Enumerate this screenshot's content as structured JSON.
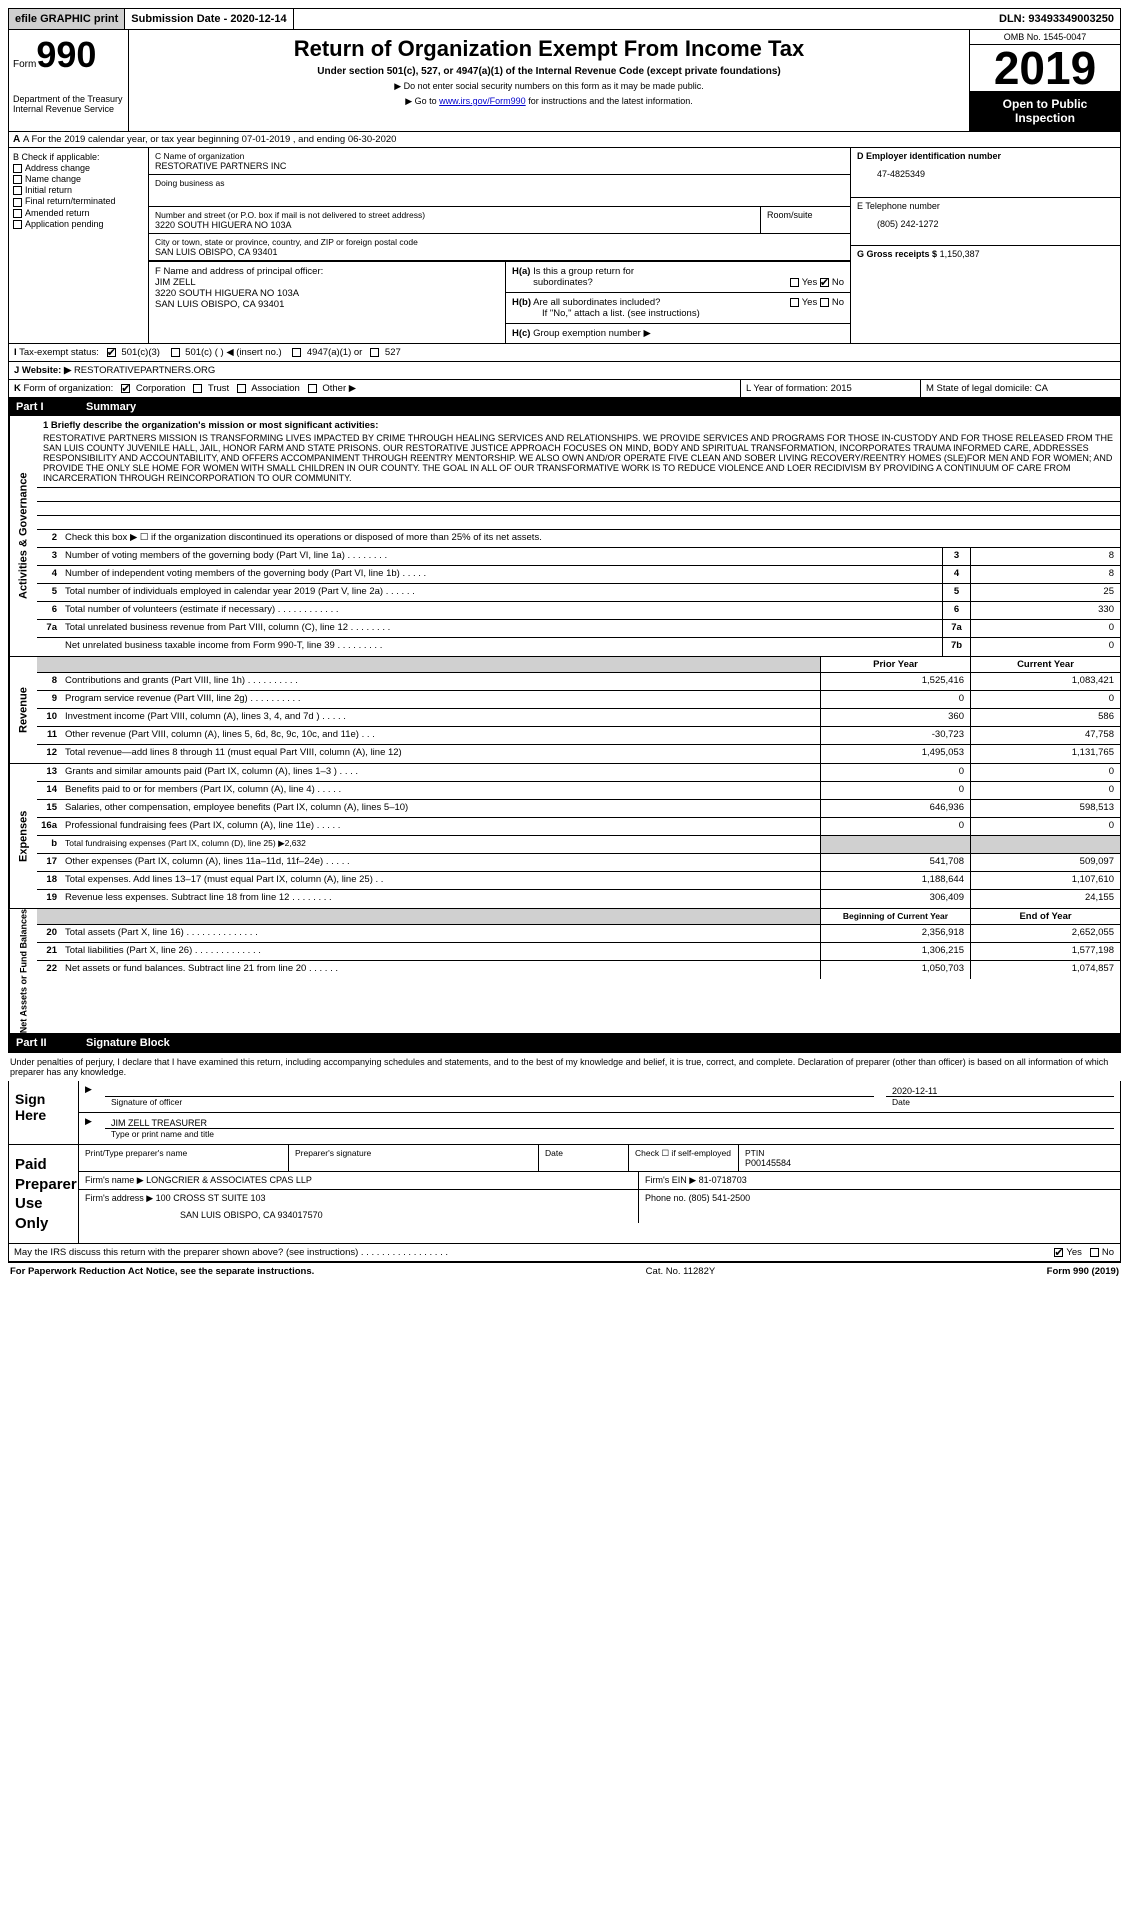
{
  "top": {
    "efile": "efile GRAPHIC print",
    "submission_label": "Submission Date - 2020-12-14",
    "dln": "DLN: 93493349003250"
  },
  "header": {
    "form_word": "Form",
    "form_num": "990",
    "dept1": "Department of the Treasury",
    "dept2": "Internal Revenue Service",
    "title": "Return of Organization Exempt From Income Tax",
    "sub1": "Under section 501(c), 527, or 4947(a)(1) of the Internal Revenue Code (except private foundations)",
    "sub2": "▶ Do not enter social security numbers on this form as it may be made public.",
    "sub3_pre": "▶ Go to ",
    "sub3_link": "www.irs.gov/Form990",
    "sub3_post": " for instructions and the latest information.",
    "omb": "OMB No. 1545-0047",
    "year": "2019",
    "open1": "Open to Public",
    "open2": "Inspection"
  },
  "rowA": "A For the 2019 calendar year, or tax year beginning 07-01-2019    , and ending 06-30-2020",
  "B": {
    "label": "B Check if applicable:",
    "opts": [
      "Address change",
      "Name change",
      "Initial return",
      "Final return/terminated",
      "Amended return",
      "Application pending"
    ]
  },
  "C": {
    "name_lbl": "C Name of organization",
    "name": "RESTORATIVE PARTNERS INC",
    "dba_lbl": "Doing business as",
    "dba": "",
    "addr_lbl": "Number and street (or P.O. box if mail is not delivered to street address)",
    "addr": "3220 SOUTH HIGUERA NO 103A",
    "room_lbl": "Room/suite",
    "city_lbl": "City or town, state or province, country, and ZIP or foreign postal code",
    "city": "SAN LUIS OBISPO, CA   93401"
  },
  "D": {
    "ein_lbl": "D Employer identification number",
    "ein": "47-4825349",
    "tel_lbl": "E Telephone number",
    "tel": "(805) 242-1272",
    "gross_lbl": "G Gross receipts $",
    "gross": "1,150,387"
  },
  "F": {
    "lbl": "F  Name and address of principal officer:",
    "name": "JIM ZELL",
    "addr1": "3220 SOUTH HIGUERA NO 103A",
    "addr2": "SAN LUIS OBISPO, CA  93401"
  },
  "H": {
    "a_lbl": "H(a)  Is this a group return for subordinates?",
    "b_lbl": "H(b)  Are all subordinates included?",
    "note": "If \"No,\" attach a list. (see instructions)",
    "c_lbl": "H(c)  Group exemption number ▶"
  },
  "I": {
    "lbl": "I   Tax-exempt status:",
    "o1": "501(c)(3)",
    "o2": "501(c) (  ) ◀ (insert no.)",
    "o3": "4947(a)(1) or",
    "o4": "527"
  },
  "J": {
    "lbl": "J  Website: ▶",
    "val": "RESTORATIVEPARTNERS.ORG"
  },
  "K": {
    "lbl": "K Form of organization:",
    "o1": "Corporation",
    "o2": "Trust",
    "o3": "Association",
    "o4": "Other ▶"
  },
  "L": {
    "lbl": "L Year of formation: 2015"
  },
  "M": {
    "lbl": "M State of legal domicile: CA"
  },
  "part1": {
    "num": "Part I",
    "title": "Summary"
  },
  "mission_lbl": "1  Briefly describe the organization's mission or most significant activities:",
  "mission": "RESTORATIVE PARTNERS MISSION IS TRANSFORMING LIVES IMPACTED BY CRIME THROUGH HEALING SERVICES AND RELATIONSHIPS. WE PROVIDE SERVICES AND PROGRAMS FOR THOSE IN-CUSTODY AND FOR THOSE RELEASED FROM THE SAN LUIS COUNTY JUVENILE HALL, JAIL, HONOR FARM AND STATE PRISONS. OUR RESTORATIVE JUSTICE APPROACH FOCUSES ON MIND, BODY AND SPIRITUAL TRANSFORMATION, INCORPORATES TRAUMA INFORMED CARE, ADDRESSES RESPONSIBILITY AND ACCOUNTABILITY, AND OFFERS ACCOMPANIMENT THROUGH REENTRY MENTORSHIP. WE ALSO OWN AND/OR OPERATE FIVE CLEAN AND SOBER LIVING RECOVERY/REENTRY HOMES (SLE)FOR MEN AND FOR WOMEN; AND PROVIDE THE ONLY SLE HOME FOR WOMEN WITH SMALL CHILDREN IN OUR COUNTY. THE GOAL IN ALL OF OUR TRANSFORMATIVE WORK IS TO REDUCE VIOLENCE AND LOER RECIDIVISM BY PROVIDING A CONTINUUM OF CARE FROM INCARCERATION THROUGH REINCORPORATION TO OUR COMMUNITY.",
  "lines_gov": [
    {
      "n": "2",
      "t": "Check this box ▶ ☐ if the organization discontinued its operations or disposed of more than 25% of its net assets.",
      "nb": "",
      "v": ""
    },
    {
      "n": "3",
      "t": "Number of voting members of the governing body (Part VI, line 1a)   .   .   .   .   .   .   .   .",
      "nb": "3",
      "v": "8"
    },
    {
      "n": "4",
      "t": "Number of independent voting members of the governing body (Part VI, line 1b)   .   .   .   .   .",
      "nb": "4",
      "v": "8"
    },
    {
      "n": "5",
      "t": "Total number of individuals employed in calendar year 2019 (Part V, line 2a)   .   .   .   .   .   .",
      "nb": "5",
      "v": "25"
    },
    {
      "n": "6",
      "t": "Total number of volunteers (estimate if necessary)   .   .   .   .   .   .   .   .   .   .   .   .",
      "nb": "6",
      "v": "330"
    },
    {
      "n": "7a",
      "t": "Total unrelated business revenue from Part VIII, column (C), line 12   .   .   .   .   .   .   .   .",
      "nb": "7a",
      "v": "0"
    },
    {
      "n": "",
      "t": "Net unrelated business taxable income from Form 990-T, line 39   .   .   .   .   .   .   .   .   .",
      "nb": "7b",
      "v": "0"
    }
  ],
  "hdr_prior": "Prior Year",
  "hdr_current": "Current Year",
  "lines_rev": [
    {
      "n": "8",
      "t": "Contributions and grants (Part VIII, line 1h)   .   .   .   .   .   .   .   .   .   .",
      "py": "1,525,416",
      "cy": "1,083,421"
    },
    {
      "n": "9",
      "t": "Program service revenue (Part VIII, line 2g)   .   .   .   .   .   .   .   .   .   .",
      "py": "0",
      "cy": "0"
    },
    {
      "n": "10",
      "t": "Investment income (Part VIII, column (A), lines 3, 4, and 7d )   .   .   .   .   .",
      "py": "360",
      "cy": "586"
    },
    {
      "n": "11",
      "t": "Other revenue (Part VIII, column (A), lines 5, 6d, 8c, 9c, 10c, and 11e)   .   .   .",
      "py": "-30,723",
      "cy": "47,758"
    },
    {
      "n": "12",
      "t": "Total revenue—add lines 8 through 11 (must equal Part VIII, column (A), line 12)",
      "py": "1,495,053",
      "cy": "1,131,765"
    }
  ],
  "lines_exp": [
    {
      "n": "13",
      "t": "Grants and similar amounts paid (Part IX, column (A), lines 1–3 )   .   .   .   .",
      "py": "0",
      "cy": "0"
    },
    {
      "n": "14",
      "t": "Benefits paid to or for members (Part IX, column (A), line 4)   .   .   .   .   .",
      "py": "0",
      "cy": "0"
    },
    {
      "n": "15",
      "t": "Salaries, other compensation, employee benefits (Part IX, column (A), lines 5–10)",
      "py": "646,936",
      "cy": "598,513"
    },
    {
      "n": "16a",
      "t": "Professional fundraising fees (Part IX, column (A), line 11e)   .   .   .   .   .",
      "py": "0",
      "cy": "0"
    },
    {
      "n": "b",
      "t": "Total fundraising expenses (Part IX, column (D), line 25) ▶2,632",
      "py": "",
      "cy": "",
      "shade": true,
      "small": true
    },
    {
      "n": "17",
      "t": "Other expenses (Part IX, column (A), lines 11a–11d, 11f–24e)   .   .   .   .   .",
      "py": "541,708",
      "cy": "509,097"
    },
    {
      "n": "18",
      "t": "Total expenses. Add lines 13–17 (must equal Part IX, column (A), line 25)   .   .",
      "py": "1,188,644",
      "cy": "1,107,610"
    },
    {
      "n": "19",
      "t": "Revenue less expenses. Subtract line 18 from line 12   .   .   .   .   .   .   .   .",
      "py": "306,409",
      "cy": "24,155"
    }
  ],
  "hdr_beg": "Beginning of Current Year",
  "hdr_end": "End of Year",
  "lines_net": [
    {
      "n": "20",
      "t": "Total assets (Part X, line 16)   .   .   .   .   .   .   .   .   .   .   .   .   .   .",
      "py": "2,356,918",
      "cy": "2,652,055"
    },
    {
      "n": "21",
      "t": "Total liabilities (Part X, line 26)   .   .   .   .   .   .   .   .   .   .   .   .   .",
      "py": "1,306,215",
      "cy": "1,577,198"
    },
    {
      "n": "22",
      "t": "Net assets or fund balances. Subtract line 21 from line 20   .   .   .   .   .   .",
      "py": "1,050,703",
      "cy": "1,074,857"
    }
  ],
  "part2": {
    "num": "Part II",
    "title": "Signature Block"
  },
  "penalties": "Under penalties of perjury, I declare that I have examined this return, including accompanying schedules and statements, and to the best of my knowledge and belief, it is true, correct, and complete. Declaration of preparer (other than officer) is based on all information of which preparer has any knowledge.",
  "sign": {
    "lbl": "Sign Here",
    "sig_lbl": "Signature of officer",
    "date_lbl": "Date",
    "date": "2020-12-11",
    "name_lbl": "Type or print name and title",
    "name": "JIM ZELL TREASURER"
  },
  "paid": {
    "lbl": "Paid Preparer Use Only",
    "c1": "Print/Type preparer's name",
    "c2": "Preparer's signature",
    "c3": "Date",
    "c4a": "Check ☐ if self-employed",
    "c4b_lbl": "PTIN",
    "c4b": "P00145584",
    "firm_lbl": "Firm's name    ▶",
    "firm": "LONGCRIER & ASSOCIATES CPAS LLP",
    "ein_lbl": "Firm's EIN ▶",
    "ein": "81-0718703",
    "addr_lbl": "Firm's address ▶",
    "addr1": "100 CROSS ST SUITE 103",
    "addr2": "SAN LUIS OBISPO, CA  934017570",
    "phone_lbl": "Phone no.",
    "phone": "(805) 541-2500"
  },
  "discuss": "May the IRS discuss this return with the preparer shown above? (see instructions)   .   .   .   .   .   .   .   .   .   .   .   .   .   .   .   .   .",
  "footer": {
    "left": "For Paperwork Reduction Act Notice, see the separate instructions.",
    "mid": "Cat. No. 11282Y",
    "right": "Form 990 (2019)"
  },
  "vtabs": {
    "gov": "Activities & Governance",
    "rev": "Revenue",
    "exp": "Expenses",
    "net": "Net Assets or Fund Balances"
  },
  "yesno": {
    "yes": "Yes",
    "no": "No"
  }
}
